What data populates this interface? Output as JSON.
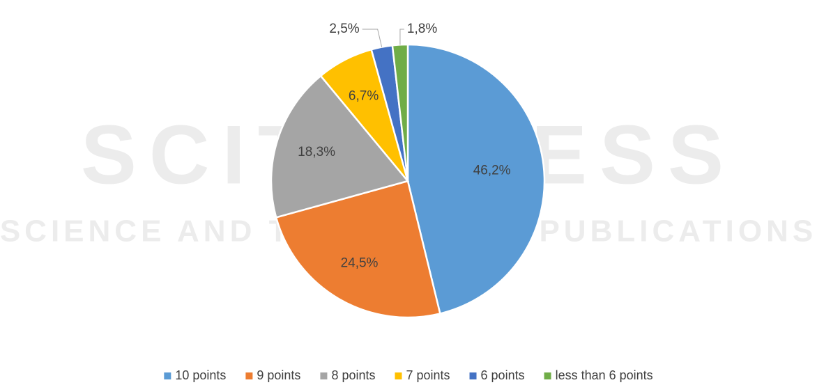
{
  "chart_data": {
    "type": "pie",
    "watermark": [
      "SCITEPRESS",
      "SCIENCE AND TECHNOLOGY PUBLICATIONS"
    ],
    "categories": [
      "10 points",
      "9 points",
      "8 points",
      "7 points",
      "6 points",
      "less than 6 points"
    ],
    "values": [
      46.2,
      24.5,
      18.3,
      6.7,
      2.5,
      1.8
    ],
    "value_labels": [
      "46,2%",
      "24,5%",
      "18,3%",
      "6,7%",
      "2,5%",
      "1,8%"
    ],
    "colors": [
      "#5b9bd5",
      "#ed7d31",
      "#a5a5a5",
      "#ffc000",
      "#4472c4",
      "#70ad47"
    ],
    "legend": "bottom"
  }
}
